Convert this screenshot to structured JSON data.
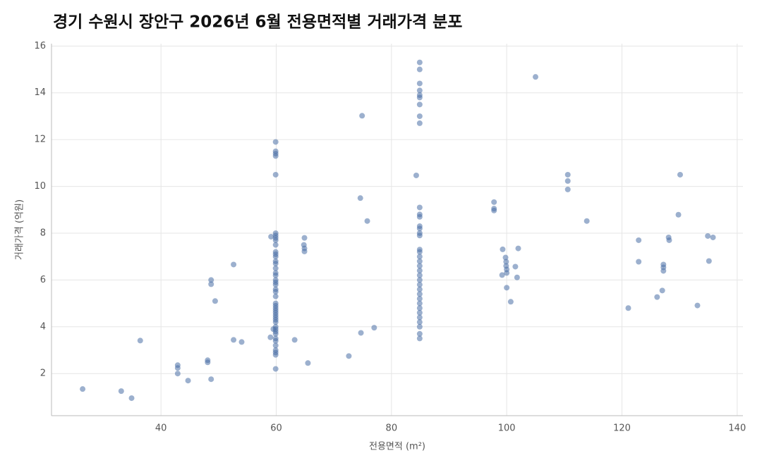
{
  "chart_data": {
    "type": "scatter",
    "title": "경기 수원시 장안구 2026년 6월 전용면적별 거래가격 분포",
    "x_label": "전용면적 (m²)",
    "y_label": "거래가격 (억원)",
    "color": "#4a6fa5",
    "grid": true,
    "xlim": [
      21,
      141
    ],
    "ylim": [
      0.2,
      16.1
    ],
    "xticks": [
      40,
      60,
      80,
      100,
      120,
      140
    ],
    "yticks": [
      2,
      4,
      6,
      8,
      10,
      12,
      14,
      16
    ],
    "x": [
      26.4,
      33.1,
      34.9,
      36.4,
      42.9,
      42.9,
      42.9,
      44.7,
      48.1,
      48.1,
      48.7,
      48.7,
      48.7,
      49.4,
      52.6,
      52.6,
      54.0,
      59.9,
      59.9,
      59.9,
      59.9,
      59.9,
      59.9,
      59.9,
      59.9,
      59.9,
      59.9,
      59.9,
      59.9,
      59.9,
      59.9,
      59.9,
      59.9,
      59.9,
      59.9,
      59.9,
      59.9,
      59.9,
      59.9,
      59.9,
      59.9,
      59.9,
      59.9,
      59.9,
      59.9,
      59.9,
      59.9,
      59.9,
      59.9,
      59.9,
      59.9,
      59.9,
      59.9,
      59.9,
      59.9,
      59.9,
      59.9,
      59.9,
      59.9,
      59.9,
      59.9,
      59.0,
      59.1,
      59.5,
      64.8,
      64.9,
      64.9,
      64.9,
      63.2,
      65.5,
      72.6,
      74.6,
      74.7,
      74.9,
      75.8,
      77.0,
      84.9,
      84.9,
      84.9,
      84.9,
      84.9,
      84.9,
      84.9,
      84.9,
      84.9,
      84.3,
      84.9,
      84.9,
      84.9,
      84.9,
      84.9,
      84.9,
      84.9,
      84.9,
      84.9,
      84.9,
      84.9,
      84.9,
      84.9,
      84.9,
      84.9,
      84.9,
      84.9,
      84.9,
      84.9,
      84.9,
      84.9,
      84.9,
      84.9,
      84.9,
      84.9,
      84.9,
      84.9,
      97.8,
      97.8,
      97.8,
      99.3,
      99.2,
      99.8,
      99.9,
      99.9,
      100.0,
      100.0,
      100.0,
      100.7,
      101.5,
      101.8,
      102.0,
      105.0,
      110.6,
      110.6,
      110.6,
      113.9,
      121.1,
      122.9,
      122.9,
      126.1,
      127.0,
      127.2,
      127.2,
      127.2,
      128.1,
      128.2,
      129.8,
      130.1,
      133.1,
      134.9,
      135.1,
      135.8
    ],
    "values": [
      1.34,
      1.25,
      0.95,
      3.41,
      2.36,
      2.24,
      2.0,
      1.7,
      2.57,
      2.48,
      1.76,
      6.0,
      5.82,
      5.1,
      6.66,
      3.44,
      3.35,
      11.9,
      11.5,
      11.4,
      11.3,
      10.5,
      8.0,
      7.9,
      7.7,
      7.5,
      7.2,
      7.1,
      7.0,
      6.8,
      6.7,
      6.5,
      6.3,
      6.2,
      6.0,
      5.9,
      5.8,
      5.6,
      5.5,
      5.3,
      5.0,
      4.9,
      4.8,
      4.7,
      4.6,
      4.5,
      4.4,
      4.3,
      4.2,
      4.0,
      3.9,
      3.8,
      3.7,
      3.5,
      3.4,
      3.2,
      3.0,
      2.9,
      2.8,
      2.2,
      7.8,
      3.55,
      7.85,
      3.9,
      7.5,
      7.35,
      7.8,
      7.22,
      3.44,
      2.45,
      2.75,
      9.5,
      3.74,
      13.02,
      8.52,
      3.96,
      15.3,
      15.0,
      14.4,
      14.1,
      13.9,
      13.8,
      13.5,
      13.0,
      12.7,
      10.47,
      9.1,
      8.8,
      8.7,
      8.3,
      8.2,
      8.0,
      7.9,
      7.3,
      7.2,
      7.0,
      6.8,
      6.6,
      6.4,
      6.2,
      6.0,
      5.8,
      5.6,
      5.4,
      5.2,
      5.0,
      4.8,
      4.6,
      4.4,
      4.2,
      4.0,
      3.7,
      3.5,
      8.97,
      9.05,
      9.33,
      7.31,
      6.21,
      6.96,
      6.78,
      6.6,
      6.45,
      6.3,
      5.67,
      5.07,
      6.57,
      6.11,
      7.35,
      14.68,
      10.5,
      10.23,
      9.87,
      8.52,
      4.8,
      7.7,
      6.78,
      5.27,
      5.55,
      6.66,
      6.54,
      6.39,
      7.82,
      7.7,
      8.79,
      10.5,
      4.91,
      7.88,
      6.81,
      7.82
    ]
  }
}
